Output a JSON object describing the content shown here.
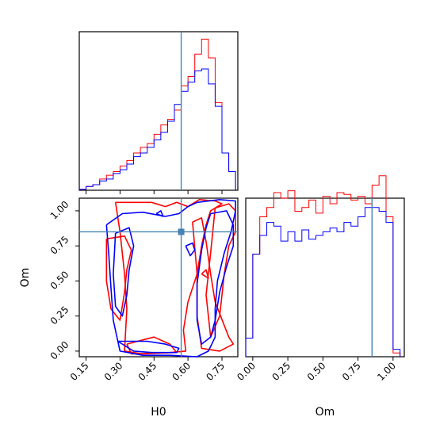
{
  "chart_data": {
    "type": "corner",
    "parameters": [
      "H0",
      "Om"
    ],
    "truths": {
      "H0": 0.57,
      "Om": 0.85
    },
    "colors": {
      "run_a": "#ff0000",
      "run_b": "#0000ff",
      "truth": "#4682b4"
    },
    "panels": [
      {
        "id": "h0-marginal",
        "type": "histogram",
        "xlim": [
          0.12,
          0.82
        ],
        "bin_edges": [
          0.12,
          0.15,
          0.18,
          0.21,
          0.24,
          0.27,
          0.3,
          0.33,
          0.36,
          0.39,
          0.42,
          0.45,
          0.48,
          0.51,
          0.54,
          0.57,
          0.6,
          0.63,
          0.66,
          0.69,
          0.72,
          0.75,
          0.78,
          0.81
        ],
        "series": [
          {
            "values": [
              0.005,
              0.02,
              0.03,
              0.06,
              0.08,
              0.1,
              0.13,
              0.16,
              0.2,
              0.23,
              0.25,
              0.3,
              0.35,
              0.38,
              0.43,
              0.56,
              0.61,
              0.73,
              0.81,
              0.71,
              0.47,
              0.2,
              0.1
            ]
          },
          {
            "values": [
              0.005,
              0.02,
              0.03,
              0.05,
              0.06,
              0.09,
              0.11,
              0.14,
              0.18,
              0.2,
              0.23,
              0.27,
              0.31,
              0.37,
              0.46,
              0.53,
              0.58,
              0.64,
              0.65,
              0.57,
              0.45,
              0.2,
              0.1
            ]
          }
        ]
      },
      {
        "id": "om-marginal",
        "type": "histogram",
        "xlim": [
          -0.05,
          1.08
        ],
        "bin_edges": [
          -0.05,
          0.0,
          0.05,
          0.1,
          0.15,
          0.2,
          0.25,
          0.3,
          0.35,
          0.4,
          0.45,
          0.5,
          0.55,
          0.6,
          0.65,
          0.7,
          0.75,
          0.8,
          0.85,
          0.9,
          0.95,
          1.0,
          1.05
        ],
        "series": [
          {
            "values": [
              0.1,
              0.55,
              0.75,
              0.8,
              0.88,
              0.85,
              0.89,
              0.78,
              0.8,
              0.84,
              0.77,
              0.86,
              0.82,
              0.88,
              0.87,
              0.84,
              0.86,
              0.82,
              0.92,
              0.97,
              0.75,
              0.02
            ]
          },
          {
            "values": [
              0.1,
              0.55,
              0.65,
              0.72,
              0.7,
              0.62,
              0.67,
              0.62,
              0.68,
              0.63,
              0.65,
              0.67,
              0.69,
              0.67,
              0.72,
              0.7,
              0.75,
              0.8,
              0.8,
              0.78,
              0.72,
              0.04
            ]
          }
        ]
      },
      {
        "id": "joint",
        "type": "contour",
        "x": "H0",
        "y": "Om",
        "xlim": [
          0.12,
          0.82
        ],
        "ylim": [
          -0.04,
          1.09
        ],
        "series": [
          {
            "contours": [
              [
                [
                  0.28,
                  1.06
                ],
                [
                  0.44,
                  1.06
                ],
                [
                  0.5,
                  1.03
                ],
                [
                  0.55,
                  1.06
                ],
                [
                  0.6,
                  1.03
                ],
                [
                  0.65,
                  1.08
                ],
                [
                  0.72,
                  1.07
                ],
                [
                  0.75,
                  1.05
                ],
                [
                  0.7,
                  1.0
                ],
                [
                  0.68,
                  0.9
                ],
                [
                  0.66,
                  0.75
                ],
                [
                  0.64,
                  0.55
                ],
                [
                  0.6,
                  0.35
                ],
                [
                  0.58,
                  0.15
                ],
                [
                  0.59,
                  0.0
                ],
                [
                  0.52,
                  -0.01
                ],
                [
                  0.4,
                  -0.02
                ],
                [
                  0.32,
                  0.0
                ],
                [
                  0.33,
                  0.3
                ],
                [
                  0.32,
                  0.55
                ],
                [
                  0.3,
                  0.85
                ],
                [
                  0.28,
                  1.06
                ]
              ],
              [
                [
                  0.33,
                  0.05
                ],
                [
                  0.4,
                  0.08
                ],
                [
                  0.45,
                  0.1
                ],
                [
                  0.52,
                  0.05
                ],
                [
                  0.55,
                  -0.01
                ],
                [
                  0.35,
                  -0.02
                ],
                [
                  0.33,
                  0.05
                ]
              ],
              [
                [
                  0.24,
                  0.8
                ],
                [
                  0.32,
                  0.82
                ],
                [
                  0.35,
                  0.72
                ],
                [
                  0.33,
                  0.58
                ],
                [
                  0.32,
                  0.42
                ],
                [
                  0.3,
                  0.22
                ],
                [
                  0.26,
                  0.3
                ],
                [
                  0.24,
                  0.5
                ],
                [
                  0.24,
                  0.8
                ]
              ],
              [
                [
                  0.62,
                  0.92
                ],
                [
                  0.66,
                  0.95
                ],
                [
                  0.68,
                  0.78
                ],
                [
                  0.7,
                  0.55
                ],
                [
                  0.72,
                  0.35
                ],
                [
                  0.78,
                  0.1
                ],
                [
                  0.8,
                  0.05
                ],
                [
                  0.74,
                  0.0
                ],
                [
                  0.66,
                  0.02
                ],
                [
                  0.64,
                  0.25
                ],
                [
                  0.64,
                  0.55
                ],
                [
                  0.62,
                  0.92
                ]
              ],
              [
                [
                  0.72,
                  1.02
                ],
                [
                  0.78,
                  1.05
                ],
                [
                  0.81,
                  1.0
                ],
                [
                  0.81,
                  0.85
                ],
                [
                  0.78,
                  0.75
                ],
                [
                  0.76,
                  0.55
                ],
                [
                  0.74,
                  0.25
                ],
                [
                  0.7,
                  0.1
                ],
                [
                  0.68,
                  0.4
                ],
                [
                  0.7,
                  0.7
                ],
                [
                  0.72,
                  1.02
                ]
              ],
              [
                [
                  0.66,
                  0.55
                ],
                [
                  0.68,
                  0.58
                ],
                [
                  0.69,
                  0.52
                ],
                [
                  0.66,
                  0.55
                ]
              ]
            ]
          },
          {
            "contours": [
              [
                [
                  0.24,
                  0.9
                ],
                [
                  0.31,
                  0.98
                ],
                [
                  0.4,
                  0.99
                ],
                [
                  0.5,
                  0.96
                ],
                [
                  0.56,
                  0.98
                ],
                [
                  0.6,
                  1.03
                ],
                [
                  0.64,
                  1.06
                ],
                [
                  0.74,
                  1.08
                ],
                [
                  0.81,
                  1.07
                ],
                [
                  0.81,
                  1.0
                ],
                [
                  0.79,
                  0.85
                ],
                [
                  0.76,
                  0.7
                ],
                [
                  0.73,
                  0.5
                ],
                [
                  0.72,
                  0.3
                ],
                [
                  0.72,
                  0.1
                ],
                [
                  0.69,
                  0.0
                ],
                [
                  0.64,
                  -0.04
                ],
                [
                  0.52,
                  -0.03
                ],
                [
                  0.4,
                  -0.03
                ],
                [
                  0.3,
                  0.0
                ],
                [
                  0.27,
                  0.22
                ],
                [
                  0.26,
                  0.45
                ],
                [
                  0.25,
                  0.7
                ],
                [
                  0.24,
                  0.9
                ]
              ],
              [
                [
                  0.29,
                  0.07
                ],
                [
                  0.42,
                  0.07
                ],
                [
                  0.5,
                  0.05
                ],
                [
                  0.56,
                  0.02
                ],
                [
                  0.55,
                  -0.01
                ],
                [
                  0.44,
                  -0.01
                ],
                [
                  0.36,
                  0.0
                ],
                [
                  0.29,
                  0.07
                ]
              ],
              [
                [
                  0.28,
                  0.84
                ],
                [
                  0.34,
                  0.88
                ],
                [
                  0.36,
                  0.75
                ],
                [
                  0.34,
                  0.58
                ],
                [
                  0.33,
                  0.4
                ],
                [
                  0.31,
                  0.25
                ],
                [
                  0.28,
                  0.32
                ],
                [
                  0.27,
                  0.55
                ],
                [
                  0.28,
                  0.84
                ]
              ],
              [
                [
                  0.7,
                  0.98
                ],
                [
                  0.77,
                  1.0
                ],
                [
                  0.8,
                  0.9
                ],
                [
                  0.8,
                  0.75
                ],
                [
                  0.77,
                  0.6
                ],
                [
                  0.74,
                  0.42
                ],
                [
                  0.72,
                  0.22
                ],
                [
                  0.7,
                  0.1
                ],
                [
                  0.66,
                  0.05
                ],
                [
                  0.64,
                  0.22
                ],
                [
                  0.64,
                  0.48
                ],
                [
                  0.66,
                  0.72
                ],
                [
                  0.68,
                  0.88
                ],
                [
                  0.7,
                  0.98
                ]
              ],
              [
                [
                  0.59,
                  0.75
                ],
                [
                  0.62,
                  0.77
                ],
                [
                  0.63,
                  0.72
                ],
                [
                  0.61,
                  0.68
                ],
                [
                  0.59,
                  0.75
                ]
              ],
              [
                [
                  0.46,
                  0.98
                ],
                [
                  0.48,
                  1.0
                ],
                [
                  0.49,
                  0.96
                ],
                [
                  0.46,
                  0.98
                ]
              ]
            ]
          }
        ]
      }
    ],
    "tick_labels": {
      "H0": [
        "0.15",
        "0.30",
        "0.45",
        "0.60",
        "0.75"
      ],
      "Om_y": [
        "0.00",
        "0.25",
        "0.50",
        "0.75",
        "1.00"
      ],
      "Om_x": [
        "0.00",
        "0.25",
        "0.50",
        "0.75",
        "1.00"
      ]
    },
    "axis_labels": {
      "x1": "H0",
      "y1": "Om",
      "x2": "Om"
    }
  }
}
